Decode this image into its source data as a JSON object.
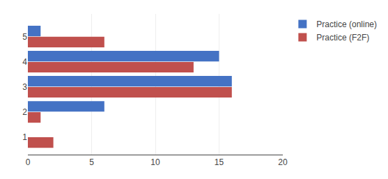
{
  "chart_data": {
    "type": "bar",
    "orientation": "horizontal",
    "categories": [
      1,
      2,
      3,
      4,
      5
    ],
    "series": [
      {
        "name": "Practice (online)",
        "color": "#4472C4",
        "values": [
          0,
          6,
          16,
          15,
          1
        ]
      },
      {
        "name": "Practice (F2F)",
        "color": "#C0504D",
        "values": [
          2,
          1,
          16,
          13,
          6
        ]
      }
    ],
    "xlim": [
      0,
      20
    ],
    "xticks": [
      0,
      5,
      10,
      15,
      20
    ],
    "grid": true,
    "legend": "upper right"
  }
}
